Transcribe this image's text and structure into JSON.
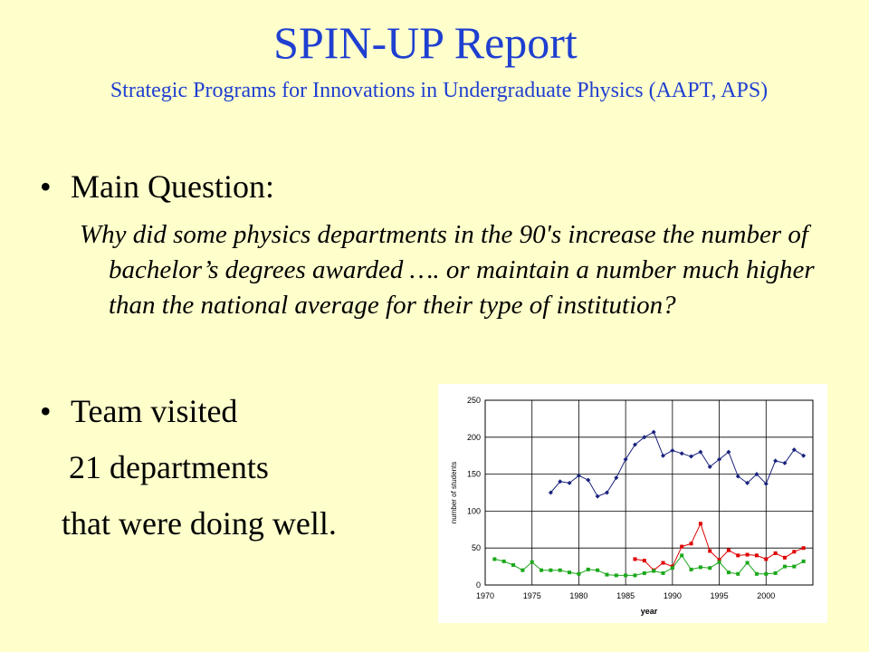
{
  "title": "SPIN-UP Report",
  "subtitle": "Strategic Programs for Innovations in Undergraduate Physics (AAPT, APS)",
  "bullets": {
    "main_question_label": "Main Question:",
    "question_text": "Why did some physics departments in the 90's increase the number of bachelor’s degrees awarded …. or maintain a number much higher than the national average for their type of institution?",
    "team_visited": "Team visited",
    "departments": "21 departments",
    "doing_well": "that were doing well."
  },
  "colors": {
    "title": "#1f3fd0",
    "background": "#ffffcc",
    "series_blue": "#1a237e",
    "series_red": "#e00000",
    "series_green": "#1aa81a"
  },
  "chart_data": {
    "type": "line",
    "xlabel": "year",
    "ylabel": "number of students",
    "xlim": [
      1970,
      2005
    ],
    "ylim": [
      0,
      250
    ],
    "x_ticks": [
      1970,
      1975,
      1980,
      1985,
      1990,
      1995,
      2000
    ],
    "y_ticks": [
      0,
      50,
      100,
      150,
      200,
      250
    ],
    "grid": true,
    "series": [
      {
        "color": "#1a237e",
        "marker": "diamond",
        "x": [
          1977,
          1978,
          1979,
          1980,
          1981,
          1982,
          1983,
          1984,
          1985,
          1986,
          1987,
          1988,
          1989,
          1990,
          1991,
          1992,
          1993,
          1994,
          1995,
          1996,
          1997,
          1998,
          1999,
          2000,
          2001,
          2002,
          2003,
          2004
        ],
        "y": [
          125,
          140,
          138,
          148,
          142,
          120,
          125,
          145,
          170,
          190,
          200,
          207,
          175,
          182,
          178,
          174,
          180,
          160,
          170,
          180,
          147,
          138,
          150,
          137,
          168,
          165,
          183,
          175
        ]
      },
      {
        "color": "#e00000",
        "marker": "square",
        "x": [
          1986,
          1987,
          1988,
          1989,
          1990,
          1991,
          1992,
          1993,
          1994,
          1995,
          1996,
          1997,
          1998,
          1999,
          2000,
          2001,
          2002,
          2003,
          2004
        ],
        "y": [
          35,
          33,
          20,
          30,
          25,
          52,
          56,
          83,
          46,
          34,
          47,
          40,
          41,
          40,
          35,
          43,
          37,
          45,
          50
        ]
      },
      {
        "color": "#1aa81a",
        "marker": "square",
        "x": [
          1971,
          1972,
          1973,
          1974,
          1975,
          1976,
          1977,
          1978,
          1979,
          1980,
          1981,
          1982,
          1983,
          1984,
          1985,
          1986,
          1987,
          1988,
          1989,
          1990,
          1991,
          1992,
          1993,
          1994,
          1995,
          1996,
          1997,
          1998,
          1999,
          2000,
          2001,
          2002,
          2003,
          2004
        ],
        "y": [
          35,
          32,
          27,
          20,
          31,
          20,
          20,
          20,
          17,
          15,
          21,
          20,
          14,
          13,
          13,
          13,
          16,
          19,
          16,
          23,
          40,
          21,
          24,
          23,
          31,
          17,
          15,
          30,
          15,
          15,
          16,
          25,
          25,
          32
        ]
      }
    ]
  }
}
